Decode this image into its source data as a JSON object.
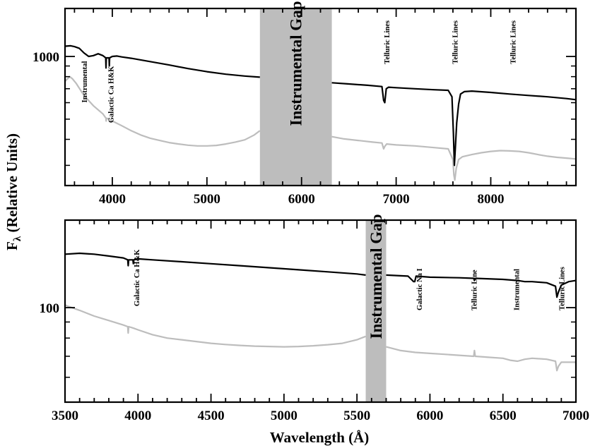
{
  "figure": {
    "ylabel_main": "F",
    "ylabel_sub": "λ",
    "ylabel_rest": " (Relative Units)",
    "xlabel": "Wavelength (Å)",
    "colors": {
      "upper_series": "#000000",
      "lower_series": "#bdbdbd",
      "gap_band": "#bdbdbd"
    }
  },
  "chart_data": [
    {
      "type": "line",
      "panel": "top",
      "xlim": [
        3500,
        8900
      ],
      "x_ticks": [
        4000,
        5000,
        6000,
        7000,
        8000
      ],
      "x_tick_labels": [
        "4000",
        "5000",
        "6000",
        "7000",
        "8000"
      ],
      "y_scale": "log",
      "y_ticks": [
        1000
      ],
      "y_tick_labels": [
        "1000"
      ],
      "ylim": [
        240,
        1700
      ],
      "series": [
        {
          "color": "#000000",
          "points": [
            [
              3500,
              1120
            ],
            [
              3560,
              1125
            ],
            [
              3600,
              1115
            ],
            [
              3650,
              1095
            ],
            [
              3700,
              1040
            ],
            [
              3750,
              1000
            ],
            [
              3800,
              1010
            ],
            [
              3850,
              1030
            ],
            [
              3900,
              1010
            ],
            [
              3930,
              985
            ],
            [
              3933,
              880
            ],
            [
              3936,
              985
            ],
            [
              3965,
              985
            ],
            [
              3968,
              900
            ],
            [
              3971,
              985
            ],
            [
              4000,
              1000
            ],
            [
              4050,
              1005
            ],
            [
              4100,
              995
            ],
            [
              4200,
              980
            ],
            [
              4400,
              945
            ],
            [
              4600,
              910
            ],
            [
              4800,
              875
            ],
            [
              5000,
              845
            ],
            [
              5200,
              822
            ],
            [
              5400,
              805
            ],
            [
              5560,
              795
            ],
            [
              6320,
              748
            ],
            [
              6500,
              738
            ],
            [
              6700,
              727
            ],
            [
              6850,
              717
            ],
            [
              6868,
              615
            ],
            [
              6880,
              600
            ],
            [
              6895,
              700
            ],
            [
              6920,
              712
            ],
            [
              7000,
              708
            ],
            [
              7200,
              700
            ],
            [
              7400,
              692
            ],
            [
              7550,
              688
            ],
            [
              7590,
              640
            ],
            [
              7605,
              430
            ],
            [
              7615,
              300
            ],
            [
              7625,
              360
            ],
            [
              7640,
              480
            ],
            [
              7660,
              590
            ],
            [
              7680,
              660
            ],
            [
              7720,
              678
            ],
            [
              7800,
              682
            ],
            [
              8000,
              672
            ],
            [
              8200,
              660
            ],
            [
              8400,
              650
            ],
            [
              8600,
              640
            ],
            [
              8800,
              628
            ],
            [
              8900,
              620
            ]
          ]
        },
        {
          "color": "#bdbdbd",
          "points": [
            [
              3500,
              760
            ],
            [
              3550,
              800
            ],
            [
              3580,
              780
            ],
            [
              3620,
              740
            ],
            [
              3700,
              650
            ],
            [
              3800,
              580
            ],
            [
              3900,
              530
            ],
            [
              3933,
              505
            ],
            [
              3935,
              490
            ],
            [
              3937,
              505
            ],
            [
              3970,
              500
            ],
            [
              4000,
              490
            ],
            [
              4100,
              465
            ],
            [
              4200,
              440
            ],
            [
              4300,
              420
            ],
            [
              4400,
              405
            ],
            [
              4500,
              395
            ],
            [
              4600,
              386
            ],
            [
              4700,
              380
            ],
            [
              4800,
              375
            ],
            [
              4900,
              372
            ],
            [
              5000,
              372
            ],
            [
              5100,
              374
            ],
            [
              5200,
              380
            ],
            [
              5300,
              388
            ],
            [
              5400,
              398
            ],
            [
              5500,
              420
            ],
            [
              5560,
              440
            ],
            [
              6320,
              412
            ],
            [
              6450,
              402
            ],
            [
              6600,
              395
            ],
            [
              6750,
              388
            ],
            [
              6850,
              384
            ],
            [
              6868,
              360
            ],
            [
              6880,
              370
            ],
            [
              6900,
              380
            ],
            [
              7000,
              376
            ],
            [
              7200,
              372
            ],
            [
              7400,
              365
            ],
            [
              7550,
              360
            ],
            [
              7600,
              320
            ],
            [
              7610,
              270
            ],
            [
              7620,
              255
            ],
            [
              7635,
              290
            ],
            [
              7660,
              320
            ],
            [
              7700,
              330
            ],
            [
              7800,
              338
            ],
            [
              7900,
              345
            ],
            [
              8000,
              350
            ],
            [
              8100,
              353
            ],
            [
              8200,
              352
            ],
            [
              8300,
              350
            ],
            [
              8400,
              345
            ],
            [
              8500,
              338
            ],
            [
              8600,
              332
            ],
            [
              8700,
              328
            ],
            [
              8800,
              325
            ],
            [
              8900,
              322
            ]
          ]
        }
      ],
      "bands": [
        {
          "x0": 5560,
          "x1": 6320,
          "label": "Instrumental Gap"
        }
      ],
      "annotations": [
        {
          "text": "Instrumental",
          "x": 3700,
          "y": 600
        },
        {
          "text": "Galactic Ca H&K",
          "x": 3980,
          "y": 480
        },
        {
          "text": "Telluric Lines",
          "x": 6900,
          "y": 920
        },
        {
          "text": "Telluric Lines",
          "x": 7620,
          "y": 920
        },
        {
          "text": "Telluric Lines",
          "x": 8230,
          "y": 920
        }
      ]
    },
    {
      "type": "line",
      "panel": "bottom",
      "xlim": [
        3500,
        7000
      ],
      "x_ticks": [
        3500,
        4000,
        4500,
        5000,
        5500,
        6000,
        6500,
        7000
      ],
      "x_tick_labels": [
        "3500",
        "4000",
        "4500",
        "5000",
        "5500",
        "6000",
        "6500",
        "7000"
      ],
      "y_scale": "log",
      "y_ticks": [
        100
      ],
      "y_tick_labels": [
        "100"
      ],
      "ylim": [
        50,
        190
      ],
      "series": [
        {
          "color": "#000000",
          "points": [
            [
              3500,
              148
            ],
            [
              3600,
              149
            ],
            [
              3700,
              148
            ],
            [
              3800,
              146
            ],
            [
              3900,
              144
            ],
            [
              3930,
              142
            ],
            [
              3933,
              136
            ],
            [
              3936,
              142
            ],
            [
              3965,
              142
            ],
            [
              3968,
              138
            ],
            [
              3971,
              142
            ],
            [
              4000,
              143
            ],
            [
              4100,
              142
            ],
            [
              4300,
              140
            ],
            [
              4500,
              138
            ],
            [
              4700,
              136
            ],
            [
              4900,
              134
            ],
            [
              5100,
              132
            ],
            [
              5300,
              130
            ],
            [
              5500,
              128
            ],
            [
              5560,
              127
            ],
            [
              5700,
              127
            ],
            [
              5850,
              126
            ],
            [
              5888,
              121
            ],
            [
              5896,
              121
            ],
            [
              5905,
              126
            ],
            [
              6000,
              125
            ],
            [
              6200,
              124.5
            ],
            [
              6300,
              124
            ],
            [
              6305,
              122
            ],
            [
              6310,
              124
            ],
            [
              6500,
              123
            ],
            [
              6600,
              122
            ],
            [
              6650,
              121
            ],
            [
              6700,
              121
            ],
            [
              6800,
              120
            ],
            [
              6860,
              117
            ],
            [
              6870,
              108
            ],
            [
              6880,
              112
            ],
            [
              6900,
              118
            ],
            [
              6950,
              121
            ],
            [
              7000,
              122
            ]
          ]
        },
        {
          "color": "#bdbdbd",
          "points": [
            [
              3500,
              102
            ],
            [
              3520,
              101
            ],
            [
              3600,
              98
            ],
            [
              3700,
              94
            ],
            [
              3800,
              91
            ],
            [
              3900,
              88
            ],
            [
              3930,
              87
            ],
            [
              3933,
              83
            ],
            [
              3936,
              87
            ],
            [
              3970,
              86
            ],
            [
              4000,
              85
            ],
            [
              4100,
              82
            ],
            [
              4200,
              80
            ],
            [
              4300,
              79
            ],
            [
              4400,
              78
            ],
            [
              4500,
              77
            ],
            [
              4600,
              76.3
            ],
            [
              4700,
              75.8
            ],
            [
              4800,
              75.4
            ],
            [
              4900,
              75.2
            ],
            [
              5000,
              75
            ],
            [
              5100,
              75.2
            ],
            [
              5200,
              75.6
            ],
            [
              5300,
              76.2
            ],
            [
              5400,
              77
            ],
            [
              5500,
              79
            ],
            [
              5560,
              81
            ],
            [
              5700,
              75
            ],
            [
              5800,
              73
            ],
            [
              5900,
              72
            ],
            [
              6000,
              71.5
            ],
            [
              6100,
              71
            ],
            [
              6200,
              70.5
            ],
            [
              6300,
              70
            ],
            [
              6305,
              73
            ],
            [
              6310,
              70
            ],
            [
              6400,
              69.5
            ],
            [
              6500,
              69
            ],
            [
              6550,
              68
            ],
            [
              6600,
              67.5
            ],
            [
              6650,
              68.5
            ],
            [
              6700,
              69
            ],
            [
              6800,
              68.5
            ],
            [
              6860,
              67.5
            ],
            [
              6870,
              63
            ],
            [
              6880,
              65
            ],
            [
              6900,
              67
            ],
            [
              7000,
              67
            ]
          ]
        }
      ],
      "bands": [
        {
          "x0": 5560,
          "x1": 5700,
          "label": "Instrumental Gap"
        }
      ],
      "annotations": [
        {
          "text": "Galactic Ca H&K",
          "x": 3990,
          "y": 101
        },
        {
          "text": "Galactic Na I",
          "x": 5925,
          "y": 98
        },
        {
          "text": "Telluric Line",
          "x": 6300,
          "y": 98
        },
        {
          "text": "Instrumental",
          "x": 6590,
          "y": 98
        },
        {
          "text": "Telluric Lines",
          "x": 6900,
          "y": 98
        }
      ]
    }
  ]
}
